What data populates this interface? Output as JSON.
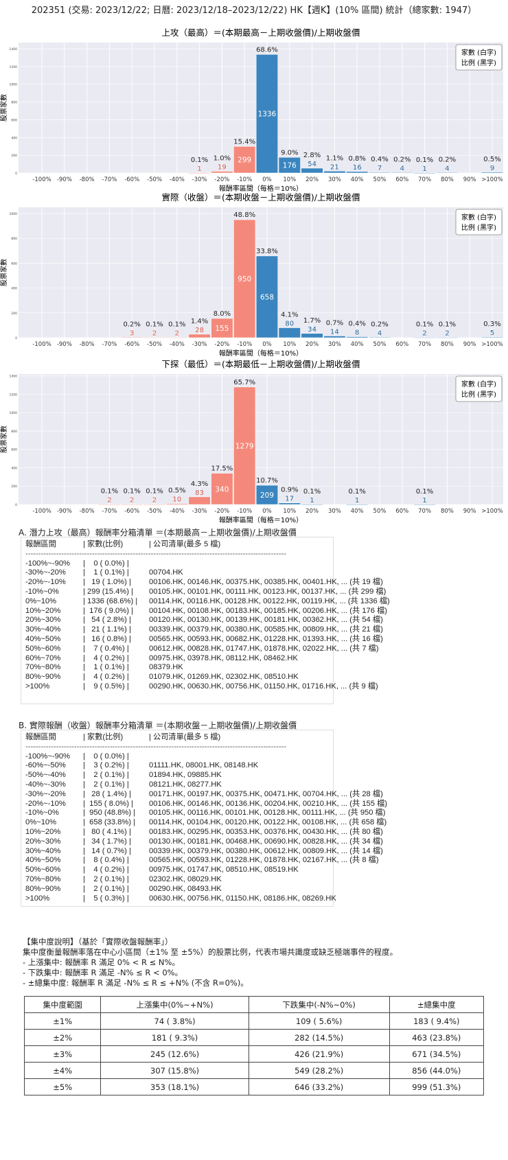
{
  "title": "202351 (交易: 2023/12/22; 日曆: 2023/12/18–2023/12/22) HK【週K】(10% 區間) 統計（總家數: 1947）",
  "chart_data": [
    {
      "type": "bar",
      "title": "上攻（最高）＝(本期最高－上期收盤價)/上期收盤價",
      "xlabel": "報酬率區間（每格＝10%）",
      "ylabel": "股票家數",
      "categories": [
        "-100%",
        "-90%",
        "-80%",
        "-70%",
        "-60%",
        "-50%",
        "-40%",
        "-30%",
        "-20%",
        "-10%",
        "0%",
        "10%",
        "20%",
        "30%",
        "40%",
        "50%",
        "60%",
        "70%",
        "80%",
        "90%",
        ">100%"
      ],
      "values": [
        0,
        0,
        0,
        0,
        0,
        0,
        0,
        1,
        19,
        299,
        1336,
        176,
        54,
        21,
        16,
        7,
        4,
        1,
        4,
        0,
        9
      ],
      "pct_labels": [
        "",
        "",
        "",
        "",
        "",
        "",
        "",
        "0.1%",
        "1.0%",
        "15.4%",
        "68.6%",
        "9.0%",
        "2.8%",
        "1.1%",
        "0.8%",
        "0.4%",
        "0.2%",
        "0.1%",
        "0.2%",
        "",
        "0.5%"
      ],
      "yticks": [
        0,
        200,
        400,
        600,
        800,
        1000,
        1200,
        1400
      ],
      "ylim": [
        0,
        1470
      ],
      "legend": [
        "家數 (白字)",
        "比例 (黑字)"
      ],
      "legend_position": "top-right",
      "grid": true,
      "colors": {
        "negative": "#f4897b",
        "positive": "#3a85bf"
      }
    },
    {
      "type": "bar",
      "title": "實際（收盤）＝(本期收盤－上期收盤價)/上期收盤價",
      "xlabel": "報酬率區間（每格＝10%）",
      "ylabel": "股票家數",
      "categories": [
        "-100%",
        "-90%",
        "-80%",
        "-70%",
        "-60%",
        "-50%",
        "-40%",
        "-30%",
        "-20%",
        "-10%",
        "0%",
        "10%",
        "20%",
        "30%",
        "40%",
        "50%",
        "60%",
        "70%",
        "80%",
        "90%",
        ">100%"
      ],
      "values": [
        0,
        0,
        0,
        0,
        3,
        2,
        2,
        28,
        155,
        950,
        658,
        80,
        34,
        14,
        8,
        4,
        0,
        2,
        2,
        0,
        5
      ],
      "pct_labels": [
        "",
        "",
        "",
        "",
        "0.2%",
        "0.1%",
        "0.1%",
        "1.4%",
        "8.0%",
        "48.8%",
        "33.8%",
        "4.1%",
        "1.7%",
        "0.7%",
        "0.4%",
        "0.2%",
        "",
        "0.1%",
        "0.1%",
        "",
        "0.3%"
      ],
      "yticks": [
        0,
        200,
        400,
        600,
        800,
        1000
      ],
      "ylim": [
        0,
        1050
      ],
      "legend": [
        "家數 (白字)",
        "比例 (黑字)"
      ],
      "legend_position": "top-right",
      "grid": true,
      "colors": {
        "negative": "#f4897b",
        "positive": "#3a85bf"
      }
    },
    {
      "type": "bar",
      "title": "下探（最低）＝(本期最低－上期收盤價)/上期收盤價",
      "xlabel": "報酬率區間（每格＝10%）",
      "ylabel": "股票家數",
      "categories": [
        "-100%",
        "-90%",
        "-80%",
        "-70%",
        "-60%",
        "-50%",
        "-40%",
        "-30%",
        "-20%",
        "-10%",
        "0%",
        "10%",
        "20%",
        "30%",
        "40%",
        "50%",
        "60%",
        "70%",
        "80%",
        "90%",
        ">100%"
      ],
      "values": [
        0,
        0,
        0,
        2,
        2,
        2,
        10,
        83,
        340,
        1279,
        209,
        17,
        1,
        0,
        1,
        0,
        0,
        1,
        0,
        0,
        0
      ],
      "pct_labels": [
        "",
        "",
        "",
        "0.1%",
        "0.1%",
        "0.1%",
        "0.5%",
        "4.3%",
        "17.5%",
        "65.7%",
        "10.7%",
        "0.9%",
        "0.1%",
        "",
        "0.1%",
        "",
        "",
        "0.1%",
        "",
        "",
        ""
      ],
      "yticks": [
        0,
        200,
        400,
        600,
        800,
        1000,
        1200,
        1400
      ],
      "ylim": [
        0,
        1420
      ],
      "legend": [
        "家數 (白字)",
        "比例 (黑字)"
      ],
      "legend_position": "top-right",
      "grid": true,
      "colors": {
        "negative": "#f4897b",
        "positive": "#3a85bf"
      }
    }
  ],
  "list_a": {
    "heading": "A. 潛力上攻（最高）報酬率分箱清單 ＝(本期最高－上期收盤價)/上期收盤價",
    "header": [
      "報酬區間",
      "| 家數(比例)",
      "| 公司清單(最多 5 檔)"
    ],
    "divider": "-----------------------------------------------------------------------------------------------------------",
    "rows": [
      [
        "-100%~-90%",
        "|    0 ( 0.0%) |",
        ""
      ],
      [
        "-30%~-20%",
        "|    1 ( 0.1%) |",
        "00704.HK"
      ],
      [
        "-20%~-10%",
        "|   19 ( 1.0%) |",
        "00106.HK, 00146.HK, 00375.HK, 00385.HK, 00401.HK, ... (共 19 檔)"
      ],
      [
        "-10%~0%",
        "| 299 (15.4%) |",
        "00105.HK, 00101.HK, 00111.HK, 00123.HK, 00137.HK, ... (共 299 檔)"
      ],
      [
        "0%~10%",
        "| 1336 (68.6%) |",
        "00114.HK, 00116.HK, 00128.HK, 00122.HK, 00119.HK, ... (共 1336 檔)"
      ],
      [
        "10%~20%",
        "|  176 ( 9.0%) |",
        "00104.HK, 00108.HK, 00183.HK, 00185.HK, 00206.HK, ... (共 176 檔)"
      ],
      [
        "20%~30%",
        "|   54 ( 2.8%) |",
        "00120.HK, 00130.HK, 00139.HK, 00181.HK, 00362.HK, ... (共 54 檔)"
      ],
      [
        "30%~40%",
        "|   21 ( 1.1%) |",
        "00339.HK, 00379.HK, 00380.HK, 00585.HK, 00809.HK, ... (共 21 檔)"
      ],
      [
        "40%~50%",
        "|   16 ( 0.8%) |",
        "00565.HK, 00593.HK, 00682.HK, 01228.HK, 01393.HK, ... (共 16 檔)"
      ],
      [
        "50%~60%",
        "|    7 ( 0.4%) |",
        "00612.HK, 00828.HK, 01747.HK, 01878.HK, 02022.HK, ... (共 7 檔)"
      ],
      [
        "60%~70%",
        "|    4 ( 0.2%) |",
        "00975.HK, 03978.HK, 08112.HK, 08462.HK"
      ],
      [
        "70%~80%",
        "|    1 ( 0.1%) |",
        "08379.HK"
      ],
      [
        "80%~90%",
        "|    4 ( 0.2%) |",
        "01079.HK, 01269.HK, 02302.HK, 08510.HK"
      ],
      [
        ">100%",
        "|    9 ( 0.5%) |",
        "00290.HK, 00630.HK, 00756.HK, 01150.HK, 01716.HK, ... (共 9 檔)"
      ]
    ]
  },
  "list_b": {
    "heading": "B. 實際報酬（收盤）報酬率分箱清單 ＝(本期收盤－上期收盤價)/上期收盤價",
    "header": [
      "報酬區間",
      "| 家數(比例)",
      "| 公司清單(最多 5 檔)"
    ],
    "divider": "-----------------------------------------------------------------------------------------------------------",
    "rows": [
      [
        "-100%~-90%",
        "|    0 ( 0.0%) |",
        ""
      ],
      [
        "-60%~-50%",
        "|    3 ( 0.2%) |",
        "01111.HK, 08001.HK, 08148.HK"
      ],
      [
        "-50%~-40%",
        "|    2 ( 0.1%) |",
        "01894.HK, 09885.HK"
      ],
      [
        "-40%~-30%",
        "|    2 ( 0.1%) |",
        "08121.HK, 08277.HK"
      ],
      [
        "-30%~-20%",
        "|   28 ( 1.4%) |",
        "00171.HK, 00197.HK, 00375.HK, 00471.HK, 00704.HK, ... (共 28 檔)"
      ],
      [
        "-20%~-10%",
        "|  155 ( 8.0%) |",
        "00106.HK, 00146.HK, 00136.HK, 00204.HK, 00210.HK, ... (共 155 檔)"
      ],
      [
        "-10%~0%",
        "|  950 (48.8%) |",
        "00105.HK, 00116.HK, 00101.HK, 00128.HK, 00111.HK, ... (共 950 檔)"
      ],
      [
        "0%~10%",
        "|  658 (33.8%) |",
        "00114.HK, 00104.HK, 00120.HK, 00122.HK, 00108.HK, ... (共 658 檔)"
      ],
      [
        "10%~20%",
        "|   80 ( 4.1%) |",
        "00183.HK, 00295.HK, 00353.HK, 00376.HK, 00430.HK, ... (共 80 檔)"
      ],
      [
        "20%~30%",
        "|   34 ( 1.7%) |",
        "00130.HK, 00181.HK, 00468.HK, 00690.HK, 00828.HK, ... (共 34 檔)"
      ],
      [
        "30%~40%",
        "|   14 ( 0.7%) |",
        "00339.HK, 00379.HK, 00380.HK, 00612.HK, 00809.HK, ... (共 14 檔)"
      ],
      [
        "40%~50%",
        "|    8 ( 0.4%) |",
        "00565.HK, 00593.HK, 01228.HK, 01878.HK, 02167.HK, ... (共 8 檔)"
      ],
      [
        "50%~60%",
        "|    4 ( 0.2%) |",
        "00975.HK, 01747.HK, 08510.HK, 08519.HK"
      ],
      [
        "70%~80%",
        "|    2 ( 0.1%) |",
        "02302.HK, 08029.HK"
      ],
      [
        "80%~90%",
        "|    2 ( 0.1%) |",
        "00290.HK, 08493.HK"
      ],
      [
        ">100%",
        "|    5 ( 0.3%) |",
        "00630.HK, 00756.HK, 01150.HK, 08186.HK, 08269.HK"
      ]
    ]
  },
  "notes": {
    "heading": "【集中度說明】（基於「實際收盤報酬率」）",
    "lines": [
      "集中度衡量報酬率落在中心小區間（±1% 至 ±5%）的股票比例，代表市場共識度或缺乏極端事件的程度。",
      " - 上漲集中: 報酬率 R 滿足 0% < R ≤ N%。",
      " - 下跌集中: 報酬率 R 滿足 -N% ≤ R < 0%。",
      " - ±總集中度: 報酬率 R 滿足 -N% ≤ R ≤ +N% (不含 R=0%)。"
    ]
  },
  "table": {
    "headers": [
      "集中度範圍",
      "上漲集中(0%~+N%)",
      "下跌集中(-N%~0%)",
      "±總集中度"
    ],
    "rows": [
      [
        "±1%",
        "74 ( 3.8%)",
        "109 ( 5.6%)",
        "183 ( 9.4%)"
      ],
      [
        "±2%",
        "181 ( 9.3%)",
        "282 (14.5%)",
        "463 (23.8%)"
      ],
      [
        "±3%",
        "245 (12.6%)",
        "426 (21.9%)",
        "671 (34.5%)"
      ],
      [
        "±4%",
        "307 (15.8%)",
        "549 (28.2%)",
        "856 (44.0%)"
      ],
      [
        "±5%",
        "353 (18.1%)",
        "646 (33.2%)",
        "999 (51.3%)"
      ]
    ]
  }
}
